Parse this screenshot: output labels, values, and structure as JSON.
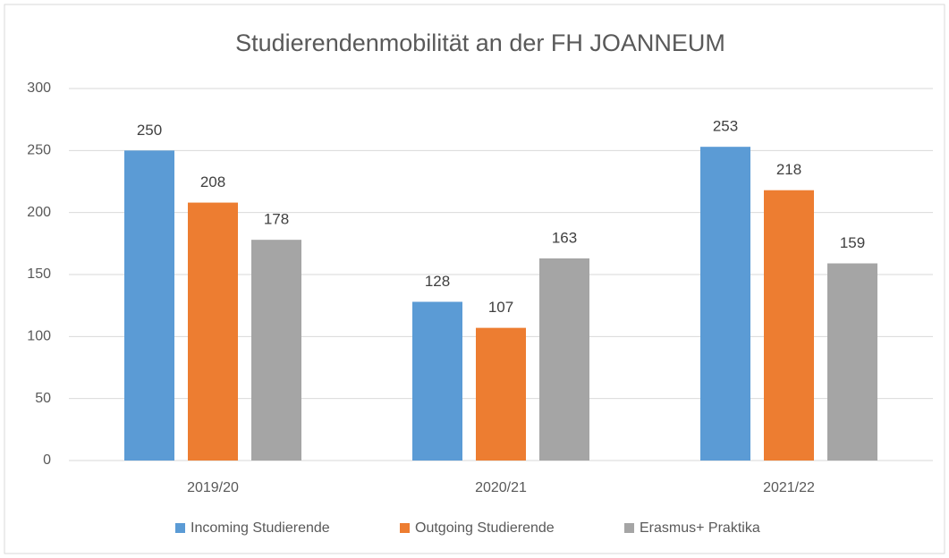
{
  "chart_data": {
    "type": "bar",
    "title": "Studierendenmobilität an der FH JOANNEUM",
    "categories": [
      "2019/20",
      "2020/21",
      "2021/22"
    ],
    "series": [
      {
        "name": "Incoming Studierende",
        "color": "#5b9bd5",
        "values": [
          250,
          128,
          253
        ]
      },
      {
        "name": "Outgoing Studierende",
        "color": "#ed7d31",
        "values": [
          208,
          107,
          218
        ]
      },
      {
        "name": "Erasmus+ Praktika",
        "color": "#a5a5a5",
        "values": [
          178,
          163,
          159
        ]
      }
    ],
    "ylim": [
      0,
      300
    ],
    "yticks": [
      0,
      50,
      100,
      150,
      200,
      250,
      300
    ],
    "grid": true,
    "legend": "bottom"
  }
}
